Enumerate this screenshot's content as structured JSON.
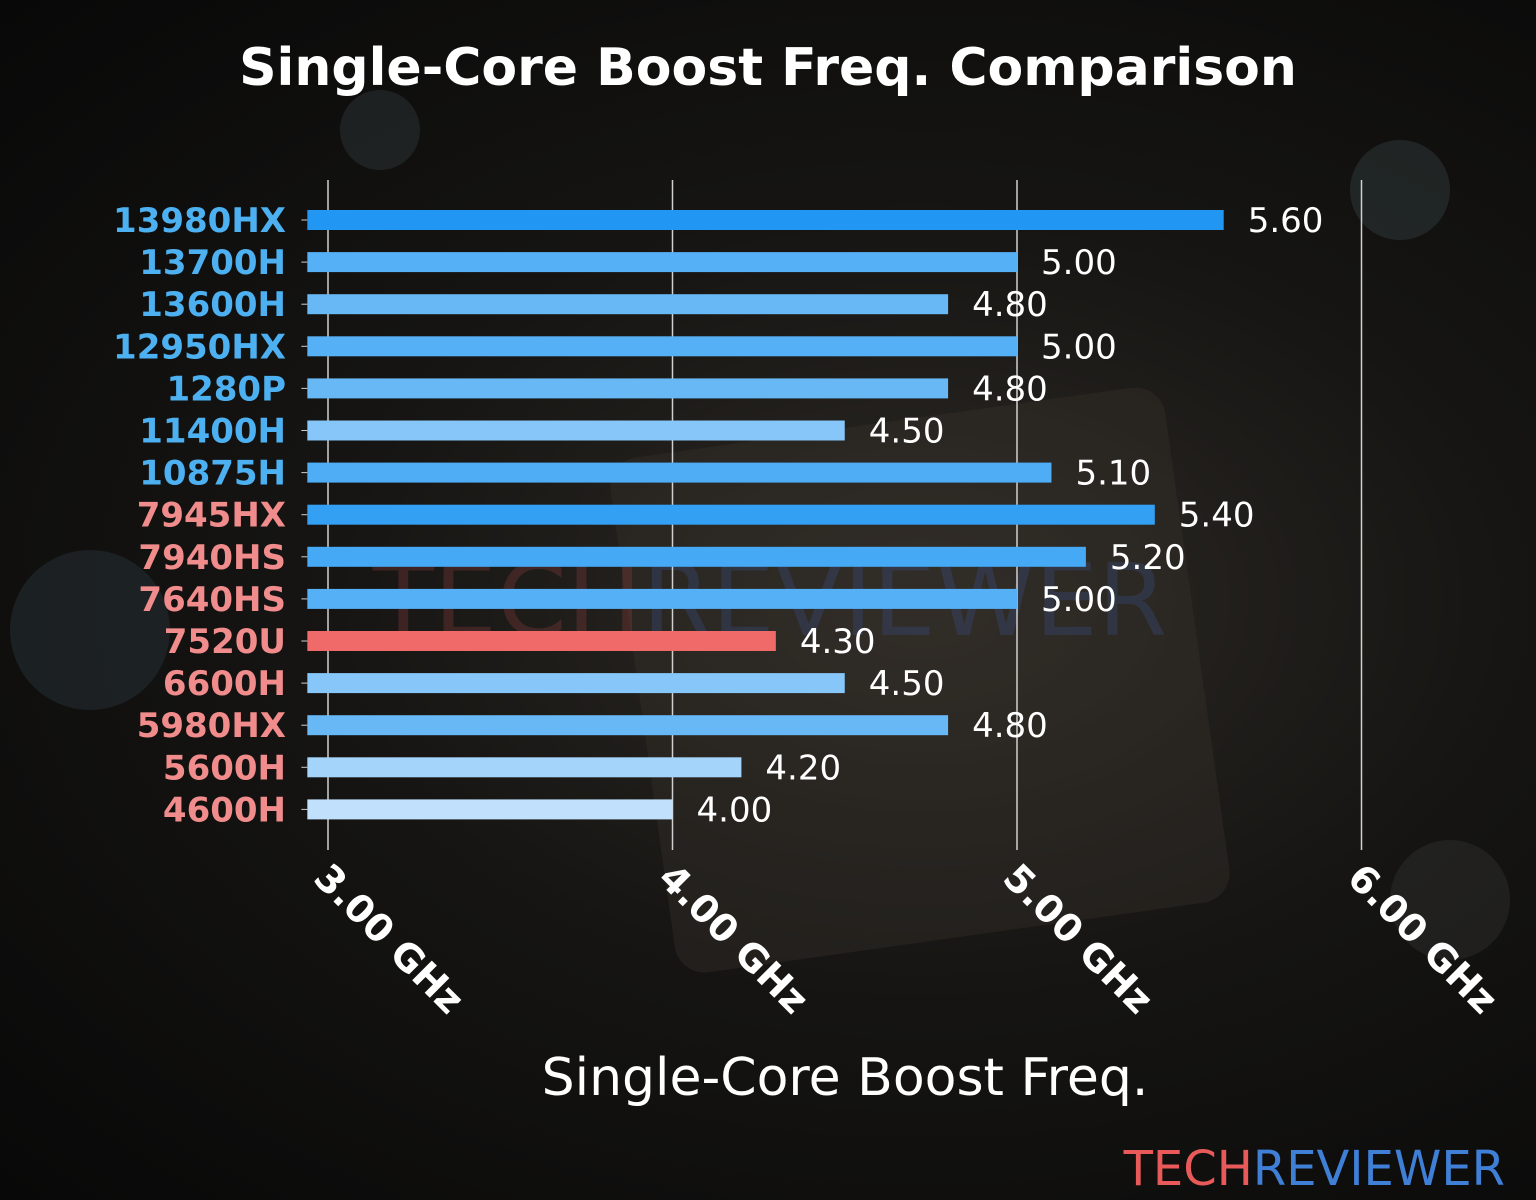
{
  "chart_data": {
    "type": "bar",
    "orientation": "horizontal",
    "title": "Single-Core Boost Freq. Comparison",
    "xlabel": "Single-Core Boost Freq.",
    "ylabel": "",
    "xlim": [
      2.94,
      6.0
    ],
    "xticks": [
      3.0,
      4.0,
      5.0,
      6.0
    ],
    "xtick_labels": [
      "3.00 GHz",
      "4.00 GHz",
      "5.00 GHz",
      "6.00 GHz"
    ],
    "grid": "vertical",
    "categories": [
      "13980HX",
      "13700H",
      "13600H",
      "12950HX",
      "1280P",
      "11400H",
      "10875H",
      "7945HX",
      "7940HS",
      "7640HS",
      "7520U",
      "6600H",
      "5980HX",
      "5600H",
      "4600H"
    ],
    "values": [
      5.6,
      5.0,
      4.8,
      5.0,
      4.8,
      4.5,
      5.1,
      5.4,
      5.2,
      5.0,
      4.3,
      4.5,
      4.8,
      4.2,
      4.0
    ],
    "value_labels": [
      "5.60",
      "5.00",
      "4.80",
      "5.00",
      "4.80",
      "4.50",
      "5.10",
      "5.40",
      "5.20",
      "5.00",
      "4.30",
      "4.50",
      "4.80",
      "4.20",
      "4.00"
    ],
    "bar_colors": [
      "#2196f3",
      "#56b0f6",
      "#68b8f6",
      "#56b0f6",
      "#68b8f6",
      "#86c6f8",
      "#4eadf5",
      "#33a0f4",
      "#45a9f5",
      "#56b0f6",
      "#f06a6a",
      "#86c6f8",
      "#68b8f6",
      "#a5d4fa",
      "#c0e0fb"
    ],
    "label_colors": [
      "#4db0f0",
      "#4db0f0",
      "#4db0f0",
      "#4db0f0",
      "#4db0f0",
      "#4db0f0",
      "#4db0f0",
      "#f08c8c",
      "#f08c8c",
      "#f08c8c",
      "#f08c8c",
      "#f08c8c",
      "#f08c8c",
      "#f08c8c",
      "#f08c8c"
    ]
  },
  "branding": {
    "logo_part1": "TECH",
    "logo_part2": "REVIEWER",
    "logo_color1": "#e85a5a",
    "logo_color2": "#3f7fd6"
  }
}
